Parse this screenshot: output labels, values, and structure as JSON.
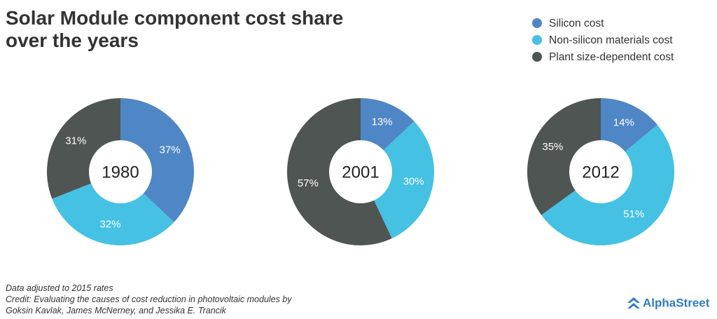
{
  "title": "Solar Module component cost share over the years",
  "notes": [
    "Data adjusted to 2015 rates",
    "Credit: Evaluating the causes of cost reduction in photovoltaic modules by",
    "Goksin Kavlak, James McNerney, and Jessika E. Trancik"
  ],
  "logo": "AlphaStreet",
  "chart_data": [
    {
      "type": "donut",
      "title": "1980",
      "categories": [
        "Silicon cost",
        "Non-silicon materials cost",
        "Plant size-dependent cost"
      ],
      "values": [
        37,
        32,
        31
      ],
      "value_labels": [
        "37%",
        "32%",
        "31%"
      ],
      "colors": [
        "#4f86c6",
        "#45c1e4",
        "#4f5553"
      ]
    },
    {
      "type": "donut",
      "title": "2001",
      "categories": [
        "Silicon cost",
        "Non-silicon materials cost",
        "Plant size-dependent cost"
      ],
      "values": [
        13,
        30,
        57
      ],
      "value_labels": [
        "13%",
        "30%",
        "57%"
      ],
      "colors": [
        "#4f86c6",
        "#45c1e4",
        "#4f5553"
      ]
    },
    {
      "type": "donut",
      "title": "2012",
      "categories": [
        "Silicon cost",
        "Non-silicon materials cost",
        "Plant size-dependent cost"
      ],
      "values": [
        14,
        51,
        35
      ],
      "value_labels": [
        "14%",
        "51%",
        "35%"
      ],
      "colors": [
        "#4f86c6",
        "#45c1e4",
        "#4f5553"
      ]
    }
  ]
}
